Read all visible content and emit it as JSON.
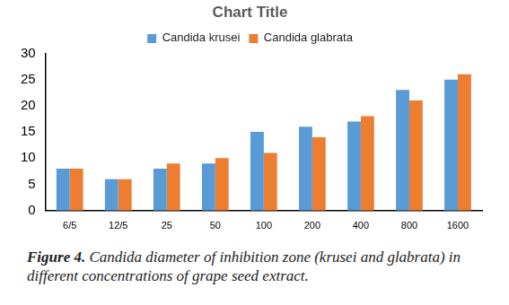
{
  "chart_data": {
    "type": "bar",
    "title": "Chart Title",
    "caption": "Figure 4. Candida diameter of inhibition zone (krusei and glabrata) in different concentrations of grape seed extract.",
    "categories": [
      "6/5",
      "12/5",
      "25",
      "50",
      "100",
      "200",
      "400",
      "800",
      "1600"
    ],
    "series": [
      {
        "name": "Candida krusei",
        "color": "#5b9bd5",
        "values": [
          8,
          6,
          8,
          9,
          15,
          16,
          17,
          23,
          25
        ]
      },
      {
        "name": "Candida glabrata",
        "color": "#ed7d31",
        "values": [
          8,
          6,
          9,
          10,
          11,
          14,
          18,
          21,
          26
        ]
      }
    ],
    "ylim": [
      0,
      30
    ],
    "yticks": [
      0,
      5,
      10,
      15,
      20,
      25,
      30
    ],
    "grid": false,
    "legend": "top"
  }
}
